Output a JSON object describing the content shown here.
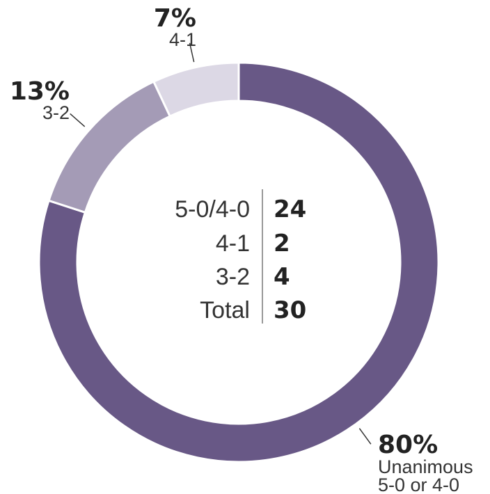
{
  "chart_data": {
    "type": "pie",
    "slices": [
      {
        "percent_label": "80%",
        "label_lines": [
          "Unanimous",
          "5-0 or 4-0"
        ],
        "value": 80,
        "color": "#685886"
      },
      {
        "percent_label": "13%",
        "label_lines": [
          "3-2"
        ],
        "value": 13,
        "color": "#a49bb6"
      },
      {
        "percent_label": "7%",
        "label_lines": [
          "4-1"
        ],
        "value": 7,
        "color": "#dcd8e5"
      }
    ],
    "table": [
      {
        "label": "5-0/4-0",
        "count": "24"
      },
      {
        "label": "4-1",
        "count": "2"
      },
      {
        "label": "3-2",
        "count": "4"
      },
      {
        "label": "Total",
        "count": "30"
      }
    ]
  }
}
